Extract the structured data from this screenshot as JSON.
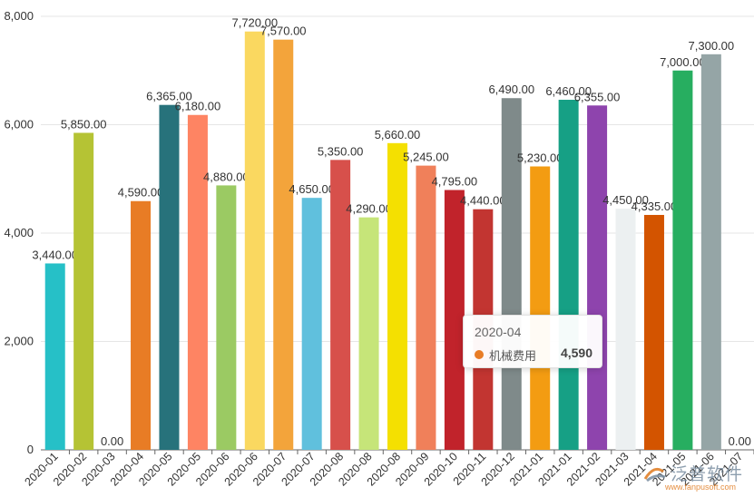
{
  "chart_data": {
    "type": "bar",
    "categories": [
      "2020-01",
      "2020-02",
      "2020-03",
      "2020-04",
      "2020-05",
      "2020-05",
      "2020-06",
      "2020-06",
      "2020-07",
      "2020-07",
      "2020-08",
      "2020-08",
      "2020-08",
      "2020-09",
      "2020-10",
      "2020-11",
      "2020-12",
      "2021-01",
      "2021-01",
      "2021-02",
      "2021-03",
      "2021-04",
      "2021-05",
      "2021-06",
      "2021-07"
    ],
    "values": [
      3440,
      5850,
      0,
      4590,
      6365,
      6180,
      4880,
      7720,
      7570,
      4650,
      5350,
      4290,
      5660,
      5245,
      4795,
      4440,
      6490,
      5230,
      6460,
      6355,
      4450,
      4335,
      7000,
      7300,
      0
    ],
    "value_labels": [
      "3,440.00",
      "5,850.00",
      "0.00",
      "4,590.00",
      "6,365.00",
      "6,180.00",
      "4,880.00",
      "7,720.00",
      "7,570.00",
      "4,650.00",
      "5,350.00",
      "4,290.00",
      "5,660.00",
      "5,245.00",
      "4,795.00",
      "4,440.00",
      "6,490.00",
      "5,230.00",
      "6,460.00",
      "6,355.00",
      "4,450.00",
      "4,335.00",
      "7,000.00",
      "7,300.00",
      "0.00"
    ],
    "colors": [
      "#26c0c7",
      "#b5c334",
      "#5e7c9a",
      "#e87c25",
      "#27727b",
      "#fe8463",
      "#9bca63",
      "#fad860",
      "#f3a43b",
      "#60c0dd",
      "#d7504b",
      "#c6e579",
      "#f4e001",
      "#f0805a",
      "#c1232b",
      "#c23531",
      "#7f8a8a",
      "#f39c12",
      "#16a085",
      "#8e44ad",
      "#ecf0f1",
      "#d35400",
      "#27ae60",
      "#95a5a6",
      "#2c3e50"
    ],
    "ylim": [
      0,
      8000
    ],
    "yticks": [
      0,
      2000,
      4000,
      6000,
      8000
    ],
    "ytick_labels": [
      "0",
      "2,000",
      "4,000",
      "6,000",
      "8,000"
    ],
    "grid": true,
    "title": "",
    "xlabel": "",
    "ylabel": ""
  },
  "tooltip": {
    "title": "2020-04",
    "series_name": "机械费用",
    "value": "4,590",
    "color": "#e87c25"
  },
  "watermark": {
    "text": "泛普软件",
    "url": "www.fanpusoft.com"
  }
}
